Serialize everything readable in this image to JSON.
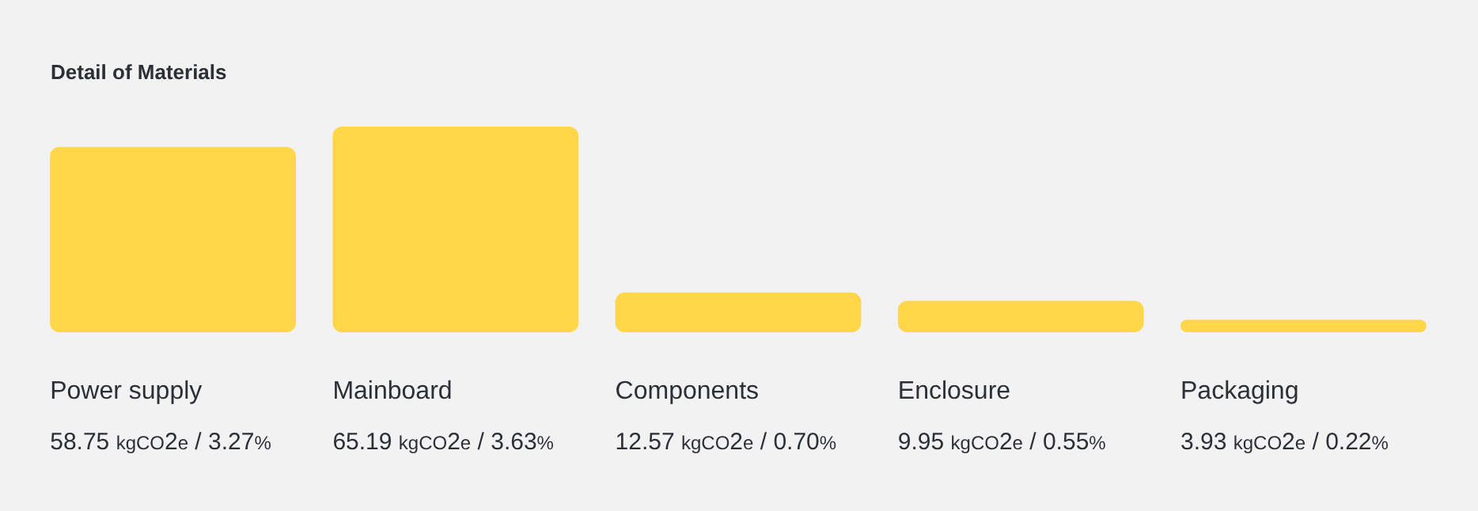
{
  "chart_data": {
    "type": "bar",
    "title": "Detail of Materials",
    "categories": [
      "Power supply",
      "Mainboard",
      "Components",
      "Enclosure",
      "Packaging"
    ],
    "values": [
      58.75,
      65.19,
      12.57,
      9.95,
      3.93
    ],
    "value_labels": [
      "58.75 kgCO2e / 3.27%",
      "65.19 kgCO2e / 3.63%",
      "12.57 kgCO2e / 0.70%",
      "9.95 kgCO2e / 0.55%",
      "3.93 kgCO2e / 0.22%"
    ],
    "color": "#ffd648"
  }
}
